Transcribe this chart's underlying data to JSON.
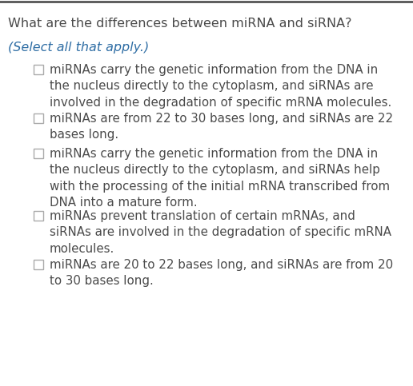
{
  "title": "What are the differences between miRNA and siRNA?",
  "subtitle": "(Select all that apply.)",
  "title_color": "#4a4a4a",
  "subtitle_color": "#2e6da4",
  "text_color": "#4a4a4a",
  "bg_color": "#ffffff",
  "top_border_color": "#555555",
  "checkbox_color": "#aaaaaa",
  "title_fontsize": 11.5,
  "subtitle_fontsize": 11.5,
  "option_fontsize": 10.8,
  "options": [
    "miRNAs carry the genetic information from the DNA in\nthe nucleus directly to the cytoplasm, and siRNAs are\ninvolved in the degradation of specific mRNA molecules.",
    "miRNAs are from 22 to 30 bases long, and siRNAs are 22\nbases long.",
    "miRNAs carry the genetic information from the DNA in\nthe nucleus directly to the cytoplasm, and siRNAs help\nwith the processing of the initial mRNA transcribed from\nDNA into a mature form.",
    "miRNAs prevent translation of certain mRNAs, and\nsiRNAs are involved in the degradation of specific mRNA\nmolecules.",
    "miRNAs are 20 to 22 bases long, and siRNAs are from 20\nto 30 bases long."
  ],
  "option_line_counts": [
    3,
    2,
    4,
    3,
    2
  ],
  "fig_width": 5.16,
  "fig_height": 4.83,
  "dpi": 100
}
